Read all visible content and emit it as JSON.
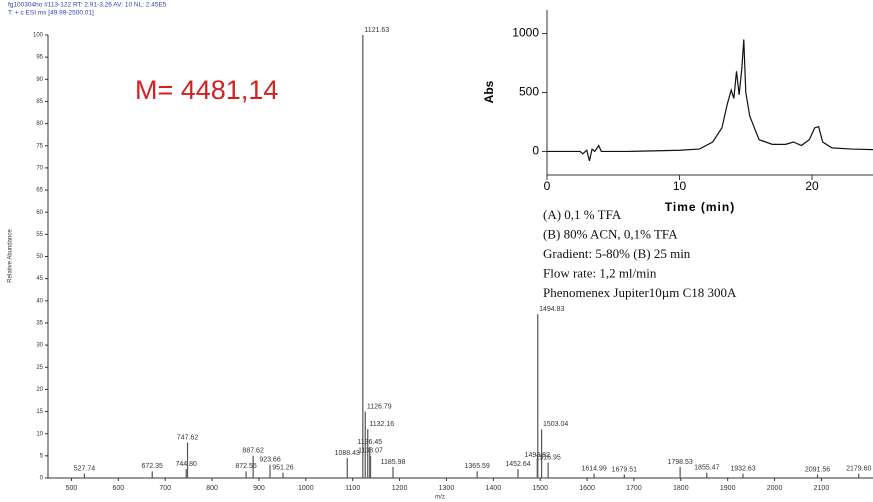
{
  "chart_data": [
    {
      "type": "stem",
      "header": [
        "fg100304ho #113-122  RT: 2.91-3.26  AV: 10  NL: 2.45E5",
        "T: + c ESI ms [49.99-2500.01]"
      ],
      "ylabel": "Relative Abundance",
      "xlabel": "m/z",
      "annotation": "M= 4481,14",
      "color": "#555555",
      "xlim": [
        450,
        2210
      ],
      "ylim": [
        0,
        100
      ],
      "xticks": [
        500,
        600,
        700,
        800,
        900,
        1000,
        1100,
        1200,
        1300,
        1400,
        1500,
        1600,
        1700,
        1800,
        1900,
        2000,
        2100
      ],
      "yticks": [
        0,
        5,
        10,
        15,
        20,
        25,
        30,
        35,
        40,
        45,
        50,
        55,
        60,
        65,
        70,
        75,
        80,
        85,
        90,
        95,
        100
      ],
      "x": [
        527.74,
        672.35,
        744.8,
        747.62,
        872.55,
        887.62,
        923.66,
        951.26,
        1088.43,
        1121.63,
        1126.79,
        1132.16,
        1136.45,
        1138.07,
        1185.98,
        1365.59,
        1452.64,
        1493.82,
        1494.83,
        1503.04,
        1516.95,
        1614.99,
        1679.51,
        1798.53,
        1855.47,
        1932.63,
        2091.56,
        2179.6
      ],
      "x_labels": [
        "527.74",
        "672.35",
        "744.80",
        "747.62",
        "872.55",
        "887.62",
        "923.66",
        "951.26",
        "1088.43",
        "1121.63",
        "1126.79",
        "1132.16",
        "1136.45",
        "1138.07",
        "1185.98",
        "1365.59",
        "1452.64",
        "1493.82",
        "1494.83",
        "1503.04",
        "1516.95",
        "1614.99",
        "1679.51",
        "1798.53",
        "1855.47",
        "1932.63",
        "2091.56",
        "2179.60"
      ],
      "values": [
        1,
        1.5,
        2,
        8,
        1.5,
        5,
        3,
        1.2,
        4.5,
        100,
        15,
        11,
        7,
        5,
        2.5,
        1.5,
        2,
        4,
        37,
        11,
        3.5,
        1,
        0.8,
        2.5,
        1.2,
        1,
        0.8,
        1
      ]
    },
    {
      "type": "line",
      "ylabel": "Abs",
      "xlabel": "Time (min)",
      "color": "#111111",
      "xlim": [
        0,
        24.6
      ],
      "ylim": [
        -200,
        1200
      ],
      "xticks": [
        0,
        10,
        20
      ],
      "yticks": [
        0,
        500,
        1000
      ],
      "x": [
        0,
        2.5,
        2.7,
        3,
        3.2,
        3.4,
        3.6,
        3.9,
        4.1,
        6,
        8,
        10,
        11.5,
        12.5,
        13.2,
        13.6,
        13.9,
        14.1,
        14.3,
        14.5,
        14.7,
        14.85,
        15,
        15.3,
        16,
        17,
        18,
        18.6,
        19.2,
        19.8,
        20.2,
        20.5,
        20.8,
        21.5,
        23,
        24.6
      ],
      "values": [
        0,
        0,
        -20,
        10,
        -80,
        20,
        0,
        50,
        0,
        0,
        5,
        10,
        20,
        80,
        200,
        400,
        520,
        450,
        680,
        480,
        700,
        950,
        500,
        300,
        100,
        60,
        60,
        80,
        50,
        100,
        200,
        210,
        80,
        30,
        20,
        15
      ],
      "notes": [
        "(A)   0,1 % TFA",
        "(B)   80% ACN, 0,1% TFA",
        "Gradient: 5-80%  (B) 25 min",
        "Flow rate: 1,2 ml/min",
        "Phenomenex  Jupiter10µm  C18  300A"
      ]
    }
  ]
}
